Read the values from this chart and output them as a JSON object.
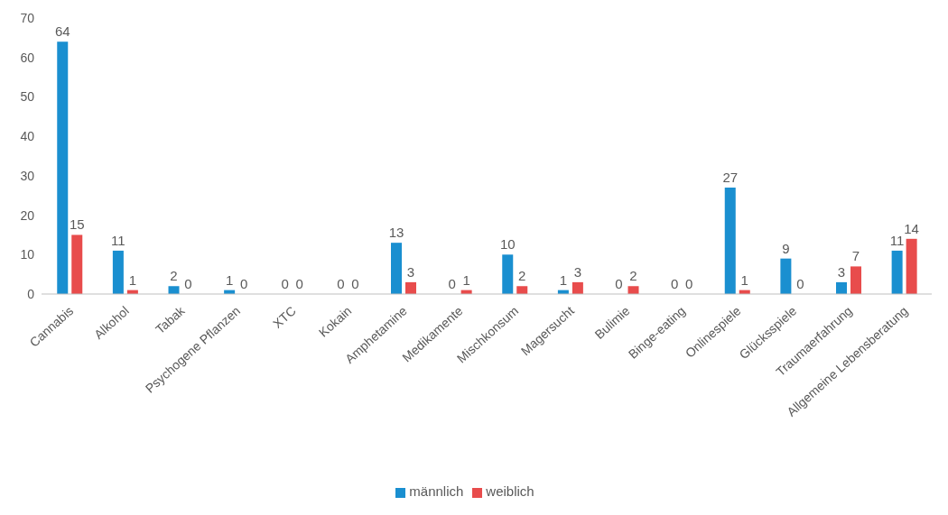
{
  "chart_data": {
    "type": "bar",
    "categories": [
      "Cannabis",
      "Alkohol",
      "Tabak",
      "Psychogene Pflanzen",
      "XTC",
      "Kokain",
      "Amphetamine",
      "Medikamente",
      "Mischkonsum",
      "Magersucht",
      "Bulimie",
      "Binge-eating",
      "Onlinespiele",
      "Glücksspiele",
      "Traumaerfahrung",
      "Allgemeine Lebensberatung"
    ],
    "series": [
      {
        "name": "männlich",
        "color": "#1a8fd0",
        "values": [
          64,
          11,
          2,
          1,
          0,
          0,
          13,
          0,
          10,
          1,
          0,
          0,
          27,
          9,
          3,
          11
        ]
      },
      {
        "name": "weiblich",
        "color": "#e84c4c",
        "values": [
          15,
          1,
          0,
          0,
          0,
          0,
          3,
          1,
          2,
          3,
          2,
          0,
          1,
          0,
          7,
          14
        ]
      }
    ],
    "ylim": [
      0,
      70
    ],
    "yticks": [
      0,
      10,
      20,
      30,
      40,
      50,
      60,
      70
    ],
    "grid": false,
    "legend": "bottom",
    "data_labels": true
  }
}
